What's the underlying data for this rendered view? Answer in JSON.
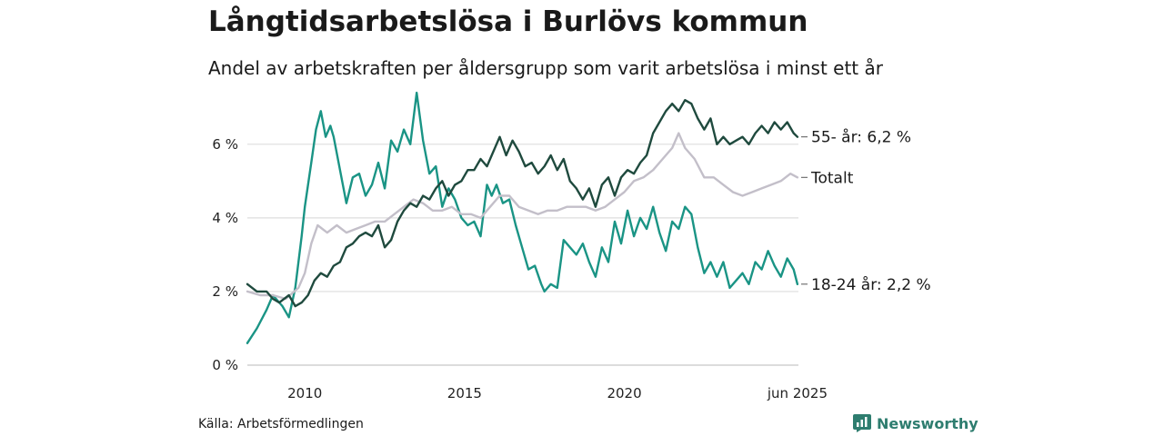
{
  "title": "Långtidsarbetslösa i Burlövs kommun",
  "subtitle": "Andel av arbetskraften per åldersgrupp som varit arbetslösa i minst ett år",
  "source": "Källa: Arbetsförmedlingen",
  "brand": "Newsworthy",
  "chart_data": {
    "type": "line",
    "x_start": "2008-03",
    "x_end": "2025-06",
    "xlim": [
      2008.2,
      2025.45
    ],
    "ylim": [
      0,
      7.5
    ],
    "y_ticks": [
      0,
      2,
      4,
      6
    ],
    "y_tick_labels": [
      "0 %",
      "2 %",
      "4 %",
      "6 %"
    ],
    "x_ticks": [
      2010,
      2015,
      2020,
      2025.42
    ],
    "x_tick_labels": [
      "2010",
      "2015",
      "2020",
      "jun 2025"
    ],
    "grid": true,
    "colors": {
      "young": "#1a9485",
      "total": "#c3bfc9",
      "old": "#1f4a3e"
    },
    "series": [
      {
        "name": "18-24 år",
        "end_label": "18-24 år: 2,2 %",
        "color": "#1a9485",
        "points": [
          [
            2008.2,
            0.6
          ],
          [
            2008.5,
            1.0
          ],
          [
            2008.8,
            1.5
          ],
          [
            2009.0,
            1.9
          ],
          [
            2009.3,
            1.6
          ],
          [
            2009.5,
            1.3
          ],
          [
            2009.7,
            2.1
          ],
          [
            2009.9,
            3.5
          ],
          [
            2010.0,
            4.3
          ],
          [
            2010.2,
            5.5
          ],
          [
            2010.35,
            6.4
          ],
          [
            2010.5,
            6.9
          ],
          [
            2010.65,
            6.2
          ],
          [
            2010.8,
            6.5
          ],
          [
            2010.9,
            6.2
          ],
          [
            2011.1,
            5.3
          ],
          [
            2011.3,
            4.4
          ],
          [
            2011.5,
            5.1
          ],
          [
            2011.7,
            5.2
          ],
          [
            2011.9,
            4.6
          ],
          [
            2012.1,
            4.9
          ],
          [
            2012.3,
            5.5
          ],
          [
            2012.5,
            4.8
          ],
          [
            2012.7,
            6.1
          ],
          [
            2012.9,
            5.8
          ],
          [
            2013.1,
            6.4
          ],
          [
            2013.3,
            6.0
          ],
          [
            2013.5,
            7.4
          ],
          [
            2013.7,
            6.1
          ],
          [
            2013.9,
            5.2
          ],
          [
            2014.1,
            5.4
          ],
          [
            2014.3,
            4.3
          ],
          [
            2014.5,
            4.8
          ],
          [
            2014.7,
            4.5
          ],
          [
            2014.9,
            4.0
          ],
          [
            2015.1,
            3.8
          ],
          [
            2015.3,
            3.9
          ],
          [
            2015.5,
            3.5
          ],
          [
            2015.7,
            4.9
          ],
          [
            2015.85,
            4.6
          ],
          [
            2016.0,
            4.9
          ],
          [
            2016.2,
            4.4
          ],
          [
            2016.4,
            4.5
          ],
          [
            2016.6,
            3.8
          ],
          [
            2016.8,
            3.2
          ],
          [
            2017.0,
            2.6
          ],
          [
            2017.2,
            2.7
          ],
          [
            2017.4,
            2.2
          ],
          [
            2017.5,
            2.0
          ],
          [
            2017.7,
            2.2
          ],
          [
            2017.9,
            2.1
          ],
          [
            2018.1,
            3.4
          ],
          [
            2018.3,
            3.2
          ],
          [
            2018.5,
            3.0
          ],
          [
            2018.7,
            3.3
          ],
          [
            2018.9,
            2.8
          ],
          [
            2019.1,
            2.4
          ],
          [
            2019.3,
            3.2
          ],
          [
            2019.5,
            2.8
          ],
          [
            2019.7,
            3.9
          ],
          [
            2019.9,
            3.3
          ],
          [
            2020.1,
            4.2
          ],
          [
            2020.3,
            3.5
          ],
          [
            2020.5,
            4.0
          ],
          [
            2020.7,
            3.7
          ],
          [
            2020.9,
            4.3
          ],
          [
            2021.1,
            3.6
          ],
          [
            2021.3,
            3.1
          ],
          [
            2021.5,
            3.9
          ],
          [
            2021.7,
            3.7
          ],
          [
            2021.9,
            4.3
          ],
          [
            2022.1,
            4.1
          ],
          [
            2022.3,
            3.2
          ],
          [
            2022.5,
            2.5
          ],
          [
            2022.7,
            2.8
          ],
          [
            2022.9,
            2.4
          ],
          [
            2023.1,
            2.8
          ],
          [
            2023.3,
            2.1
          ],
          [
            2023.5,
            2.3
          ],
          [
            2023.7,
            2.5
          ],
          [
            2023.9,
            2.2
          ],
          [
            2024.1,
            2.8
          ],
          [
            2024.3,
            2.6
          ],
          [
            2024.5,
            3.1
          ],
          [
            2024.7,
            2.7
          ],
          [
            2024.9,
            2.4
          ],
          [
            2025.1,
            2.9
          ],
          [
            2025.3,
            2.6
          ],
          [
            2025.42,
            2.2
          ]
        ]
      },
      {
        "name": "Totalt",
        "end_label": "Totalt",
        "color": "#c3bfc9",
        "points": [
          [
            2008.2,
            2.0
          ],
          [
            2008.6,
            1.9
          ],
          [
            2009.0,
            1.9
          ],
          [
            2009.4,
            1.8
          ],
          [
            2009.8,
            2.1
          ],
          [
            2010.0,
            2.5
          ],
          [
            2010.2,
            3.3
          ],
          [
            2010.4,
            3.8
          ],
          [
            2010.7,
            3.6
          ],
          [
            2011.0,
            3.8
          ],
          [
            2011.3,
            3.6
          ],
          [
            2011.6,
            3.7
          ],
          [
            2011.9,
            3.8
          ],
          [
            2012.2,
            3.9
          ],
          [
            2012.5,
            3.9
          ],
          [
            2012.8,
            4.1
          ],
          [
            2013.1,
            4.3
          ],
          [
            2013.4,
            4.5
          ],
          [
            2013.7,
            4.4
          ],
          [
            2014.0,
            4.2
          ],
          [
            2014.3,
            4.2
          ],
          [
            2014.6,
            4.3
          ],
          [
            2014.9,
            4.1
          ],
          [
            2015.2,
            4.1
          ],
          [
            2015.5,
            4.0
          ],
          [
            2015.8,
            4.3
          ],
          [
            2016.1,
            4.6
          ],
          [
            2016.4,
            4.6
          ],
          [
            2016.7,
            4.3
          ],
          [
            2017.0,
            4.2
          ],
          [
            2017.3,
            4.1
          ],
          [
            2017.6,
            4.2
          ],
          [
            2017.9,
            4.2
          ],
          [
            2018.2,
            4.3
          ],
          [
            2018.5,
            4.3
          ],
          [
            2018.8,
            4.3
          ],
          [
            2019.1,
            4.2
          ],
          [
            2019.4,
            4.3
          ],
          [
            2019.7,
            4.5
          ],
          [
            2020.0,
            4.7
          ],
          [
            2020.3,
            5.0
          ],
          [
            2020.6,
            5.1
          ],
          [
            2020.9,
            5.3
          ],
          [
            2021.2,
            5.6
          ],
          [
            2021.5,
            5.9
          ],
          [
            2021.7,
            6.3
          ],
          [
            2021.9,
            5.9
          ],
          [
            2022.2,
            5.6
          ],
          [
            2022.5,
            5.1
          ],
          [
            2022.8,
            5.1
          ],
          [
            2023.1,
            4.9
          ],
          [
            2023.4,
            4.7
          ],
          [
            2023.7,
            4.6
          ],
          [
            2024.0,
            4.7
          ],
          [
            2024.3,
            4.8
          ],
          [
            2024.6,
            4.9
          ],
          [
            2024.9,
            5.0
          ],
          [
            2025.2,
            5.2
          ],
          [
            2025.42,
            5.1
          ]
        ]
      },
      {
        "name": "55- år",
        "end_label": "55- år: 6,2 %",
        "color": "#1f4a3e",
        "points": [
          [
            2008.2,
            2.2
          ],
          [
            2008.5,
            2.0
          ],
          [
            2008.8,
            2.0
          ],
          [
            2009.0,
            1.8
          ],
          [
            2009.2,
            1.7
          ],
          [
            2009.5,
            1.9
          ],
          [
            2009.7,
            1.6
          ],
          [
            2009.9,
            1.7
          ],
          [
            2010.1,
            1.9
          ],
          [
            2010.3,
            2.3
          ],
          [
            2010.5,
            2.5
          ],
          [
            2010.7,
            2.4
          ],
          [
            2010.9,
            2.7
          ],
          [
            2011.1,
            2.8
          ],
          [
            2011.3,
            3.2
          ],
          [
            2011.5,
            3.3
          ],
          [
            2011.7,
            3.5
          ],
          [
            2011.9,
            3.6
          ],
          [
            2012.1,
            3.5
          ],
          [
            2012.3,
            3.8
          ],
          [
            2012.5,
            3.2
          ],
          [
            2012.7,
            3.4
          ],
          [
            2012.9,
            3.9
          ],
          [
            2013.1,
            4.2
          ],
          [
            2013.3,
            4.4
          ],
          [
            2013.5,
            4.3
          ],
          [
            2013.7,
            4.6
          ],
          [
            2013.9,
            4.5
          ],
          [
            2014.1,
            4.8
          ],
          [
            2014.3,
            5.0
          ],
          [
            2014.5,
            4.6
          ],
          [
            2014.7,
            4.9
          ],
          [
            2014.9,
            5.0
          ],
          [
            2015.1,
            5.3
          ],
          [
            2015.3,
            5.3
          ],
          [
            2015.5,
            5.6
          ],
          [
            2015.7,
            5.4
          ],
          [
            2015.9,
            5.8
          ],
          [
            2016.1,
            6.2
          ],
          [
            2016.3,
            5.7
          ],
          [
            2016.5,
            6.1
          ],
          [
            2016.7,
            5.8
          ],
          [
            2016.9,
            5.4
          ],
          [
            2017.1,
            5.5
          ],
          [
            2017.3,
            5.2
          ],
          [
            2017.5,
            5.4
          ],
          [
            2017.7,
            5.7
          ],
          [
            2017.9,
            5.3
          ],
          [
            2018.1,
            5.6
          ],
          [
            2018.3,
            5.0
          ],
          [
            2018.5,
            4.8
          ],
          [
            2018.7,
            4.5
          ],
          [
            2018.9,
            4.8
          ],
          [
            2019.1,
            4.3
          ],
          [
            2019.3,
            4.9
          ],
          [
            2019.5,
            5.1
          ],
          [
            2019.7,
            4.6
          ],
          [
            2019.9,
            5.1
          ],
          [
            2020.1,
            5.3
          ],
          [
            2020.3,
            5.2
          ],
          [
            2020.5,
            5.5
          ],
          [
            2020.7,
            5.7
          ],
          [
            2020.9,
            6.3
          ],
          [
            2021.1,
            6.6
          ],
          [
            2021.3,
            6.9
          ],
          [
            2021.5,
            7.1
          ],
          [
            2021.7,
            6.9
          ],
          [
            2021.9,
            7.2
          ],
          [
            2022.1,
            7.1
          ],
          [
            2022.3,
            6.7
          ],
          [
            2022.5,
            6.4
          ],
          [
            2022.7,
            6.7
          ],
          [
            2022.9,
            6.0
          ],
          [
            2023.1,
            6.2
          ],
          [
            2023.3,
            6.0
          ],
          [
            2023.5,
            6.1
          ],
          [
            2023.7,
            6.2
          ],
          [
            2023.9,
            6.0
          ],
          [
            2024.1,
            6.3
          ],
          [
            2024.3,
            6.5
          ],
          [
            2024.5,
            6.3
          ],
          [
            2024.7,
            6.6
          ],
          [
            2024.9,
            6.4
          ],
          [
            2025.1,
            6.6
          ],
          [
            2025.3,
            6.3
          ],
          [
            2025.42,
            6.2
          ]
        ]
      }
    ]
  }
}
